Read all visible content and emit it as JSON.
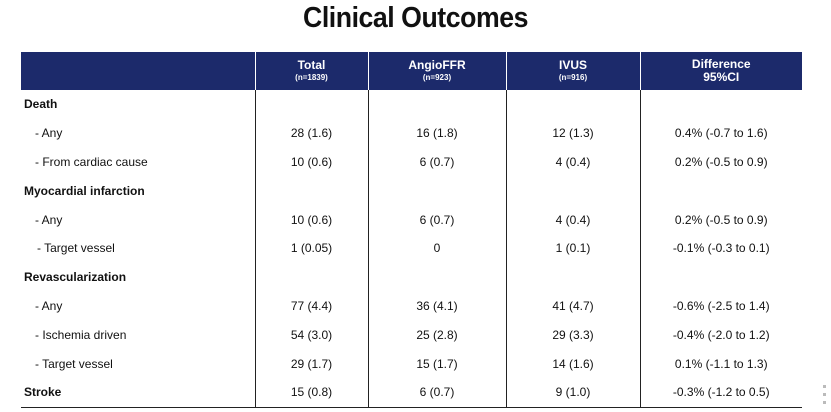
{
  "title": "Clinical Outcomes",
  "table": {
    "headers": [
      {
        "label": "",
        "sub": ""
      },
      {
        "label": "Total",
        "sub": "(n=1839)"
      },
      {
        "label": "AngioFFR",
        "sub": "(n=923)"
      },
      {
        "label": "IVUS",
        "sub": "(n=916)"
      },
      {
        "label": "Difference",
        "sub": "95%CI"
      }
    ],
    "rows": [
      {
        "label": "Death",
        "cells": [
          "",
          "",
          "",
          ""
        ]
      },
      {
        "label": "- Any",
        "cells": [
          "28 (1.6)",
          "16 (1.8)",
          "12 (1.3)",
          "0.4% (-0.7 to 1.6)"
        ]
      },
      {
        "label": "- From cardiac cause",
        "cells": [
          "10 (0.6)",
          "6 (0.7)",
          "4 (0.4)",
          "0.2% (-0.5 to 0.9)"
        ]
      },
      {
        "label": "Myocardial infarction",
        "cells": [
          "",
          "",
          "",
          ""
        ]
      },
      {
        "label": "- Any",
        "cells": [
          "10 (0.6)",
          "6 (0.7)",
          "4 (0.4)",
          "0.2% (-0.5 to 0.9)"
        ]
      },
      {
        "label": "- Target vessel",
        "cells": [
          "1 (0.05)",
          "0",
          "1 (0.1)",
          "-0.1% (-0.3 to 0.1)"
        ]
      },
      {
        "label": "Revascularization",
        "cells": [
          "",
          "",
          "",
          ""
        ]
      },
      {
        "label": "- Any",
        "cells": [
          "77 (4.4)",
          "36 (4.1)",
          "41 (4.7)",
          "-0.6% (-2.5 to 1.4)"
        ]
      },
      {
        "label": "- Ischemia driven",
        "cells": [
          "54 (3.0)",
          "25 (2.8)",
          "29 (3.3)",
          "-0.4% (-2.0 to 1.2)"
        ]
      },
      {
        "label": "- Target vessel",
        "cells": [
          "29 (1.7)",
          "15 (1.7)",
          "14 (1.6)",
          "0.1% (-1.1 to 1.3)"
        ]
      },
      {
        "label": "Stroke",
        "cells": [
          "15 (0.8)",
          "6 (0.7)",
          "9 (1.0)",
          "-0.3% (-1.2 to 0.5)"
        ]
      }
    ]
  }
}
